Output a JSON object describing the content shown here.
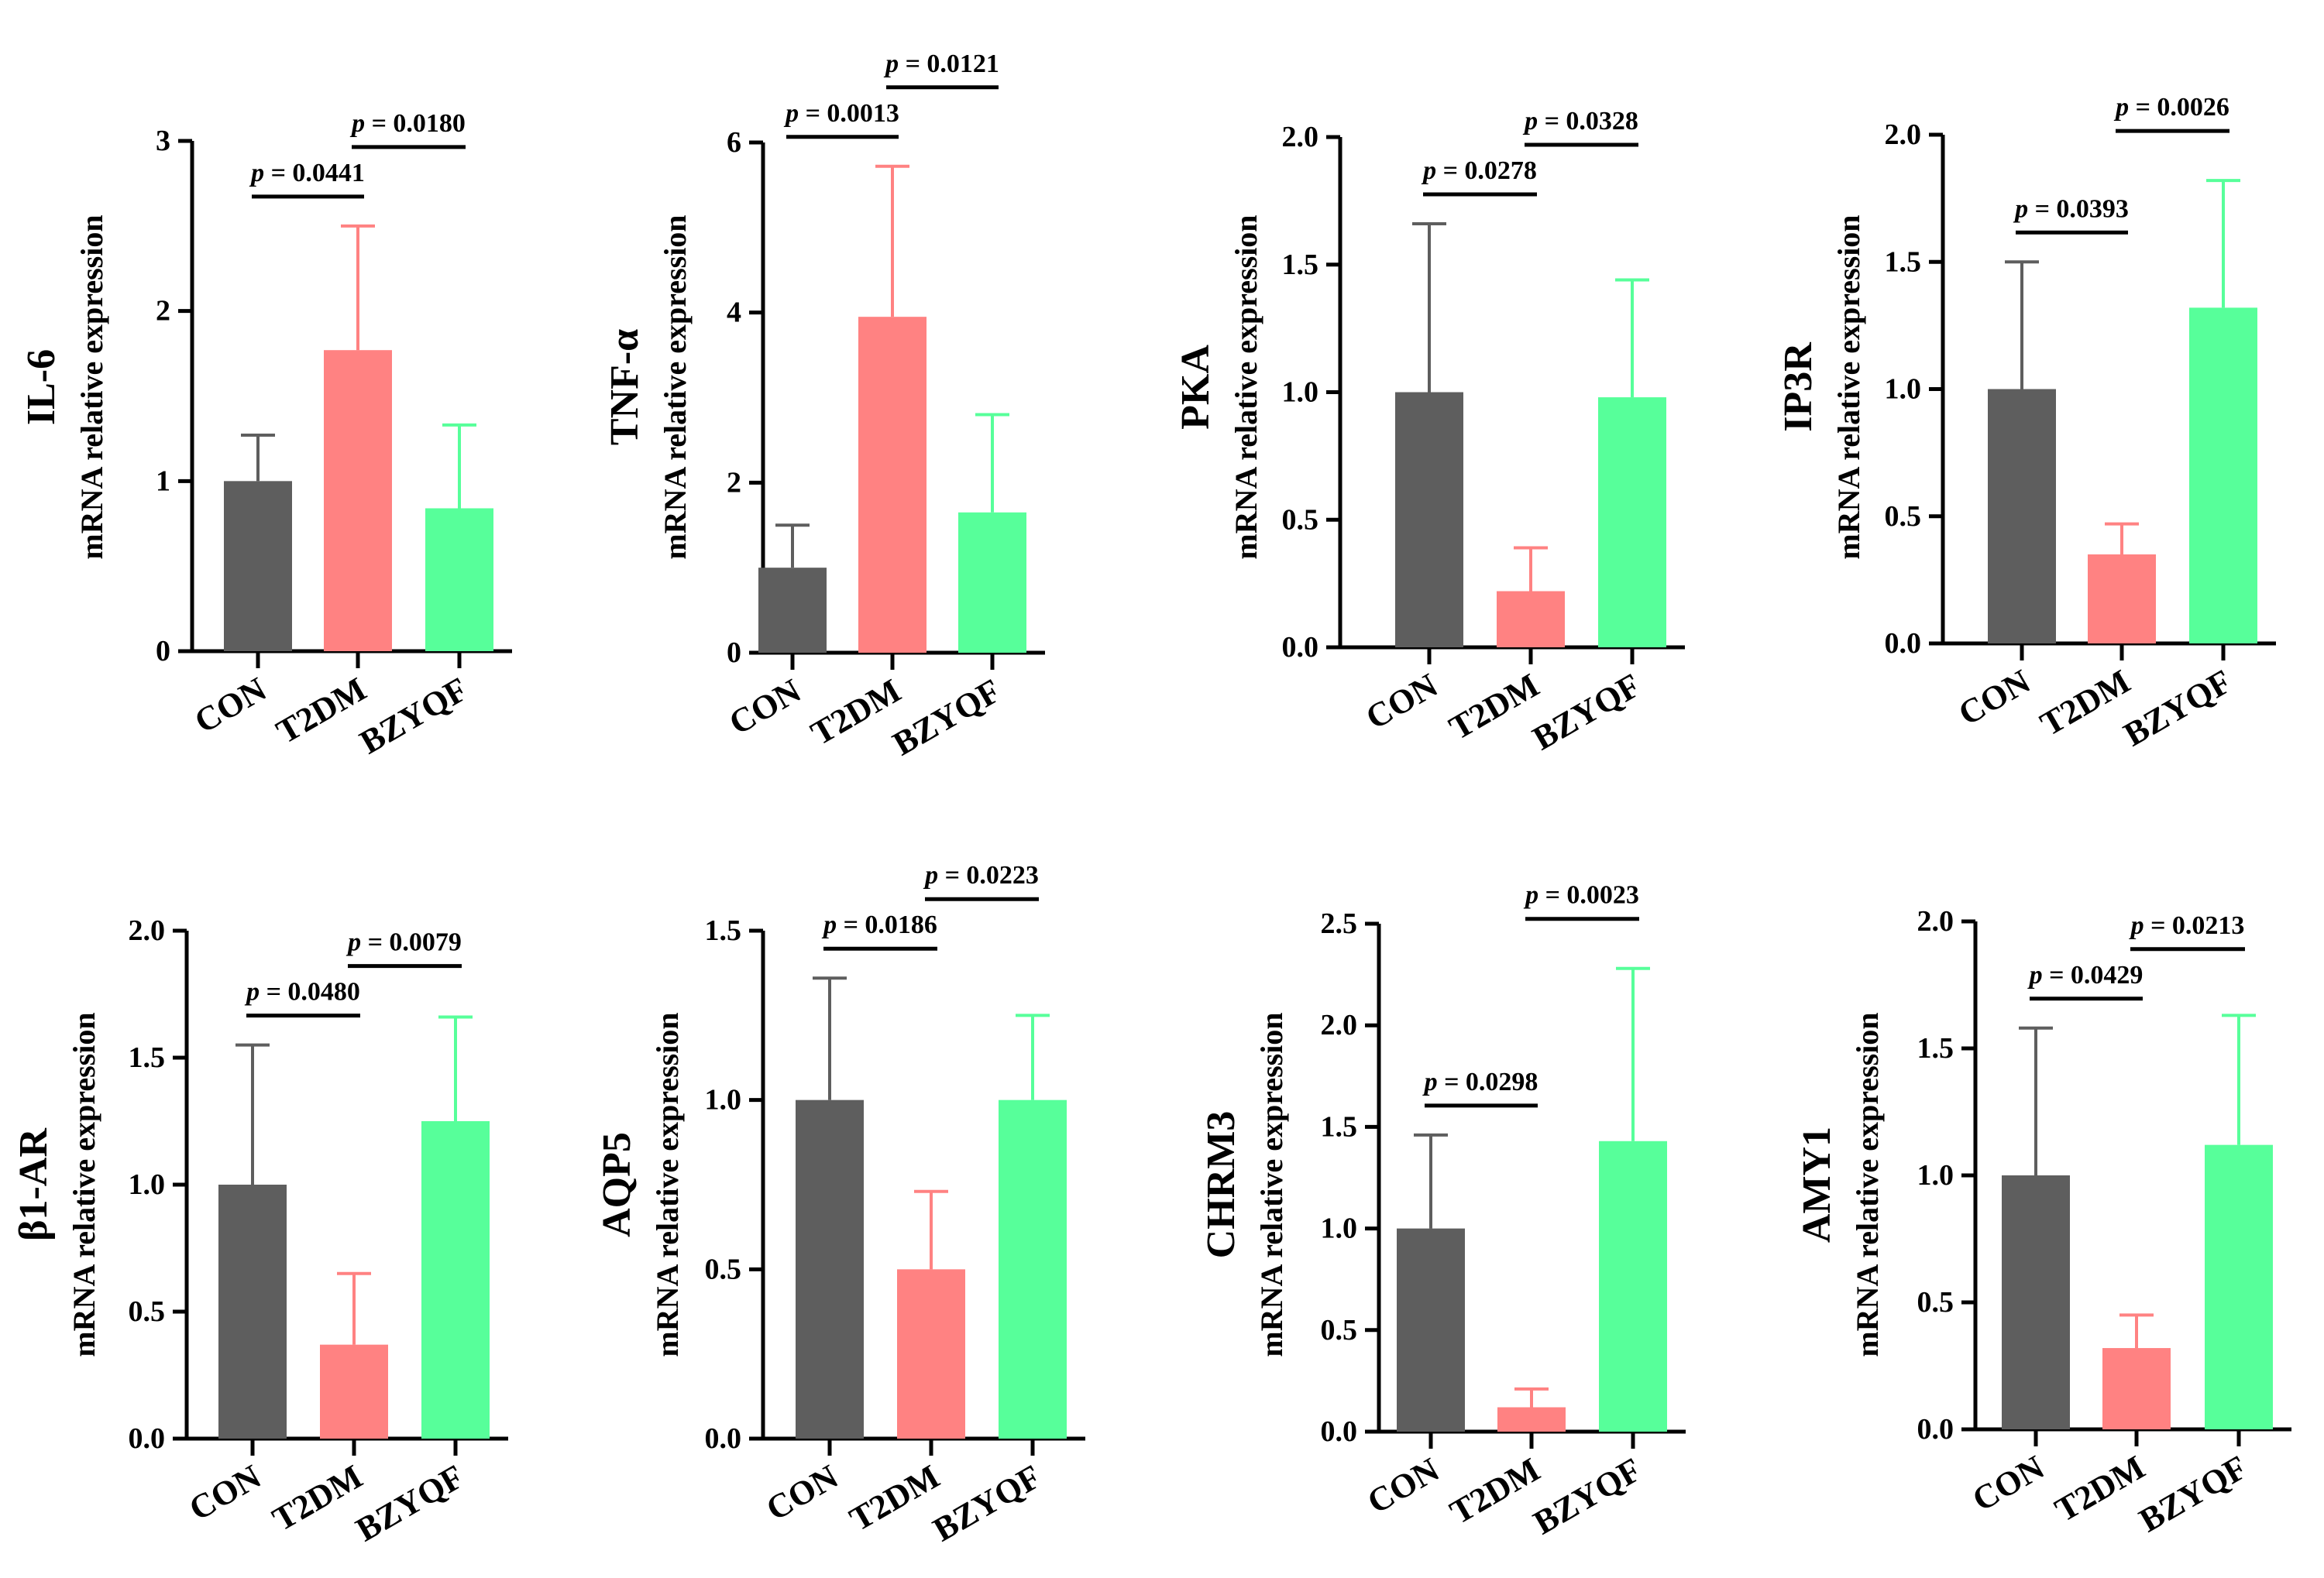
{
  "chart_data": [
    {
      "type": "bar",
      "gene": "IL-6",
      "ylabel": "mRNA relative expression",
      "categories": [
        "CON",
        "T2DM",
        "BZYQF"
      ],
      "values": [
        1.0,
        1.77,
        0.84
      ],
      "errors": [
        0.27,
        0.73,
        0.49
      ],
      "ylim": [
        0,
        3
      ],
      "yticks": [
        "0",
        "1",
        "2",
        "3"
      ],
      "comparisons": [
        {
          "from": "CON",
          "to": "T2DM",
          "label": "p = 0.0441"
        },
        {
          "from": "T2DM",
          "to": "BZYQF",
          "label": "p = 0.0180"
        }
      ]
    },
    {
      "type": "bar",
      "gene": "TNF-α",
      "ylabel": "mRNA relative expression",
      "categories": [
        "CON",
        "T2DM",
        "BZYQF"
      ],
      "values": [
        1.0,
        3.95,
        1.65
      ],
      "errors": [
        0.5,
        1.77,
        1.15
      ],
      "ylim": [
        0,
        6
      ],
      "yticks": [
        "0",
        "2",
        "4",
        "6"
      ],
      "comparisons": [
        {
          "from": "CON",
          "to": "T2DM",
          "label": "p = 0.0013"
        },
        {
          "from": "T2DM",
          "to": "BZYQF",
          "label": "p = 0.0121"
        }
      ]
    },
    {
      "type": "bar",
      "gene": "PKA",
      "ylabel": "mRNA relative expression",
      "categories": [
        "CON",
        "T2DM",
        "BZYQF"
      ],
      "values": [
        1.0,
        0.22,
        0.98
      ],
      "errors": [
        0.66,
        0.17,
        0.46
      ],
      "ylim": [
        0,
        2
      ],
      "yticks": [
        "0.0",
        "0.5",
        "1.0",
        "1.5",
        "2.0"
      ],
      "comparisons": [
        {
          "from": "CON",
          "to": "T2DM",
          "label": "p = 0.0278"
        },
        {
          "from": "T2DM",
          "to": "BZYQF",
          "label": "p = 0.0328"
        }
      ]
    },
    {
      "type": "bar",
      "gene": "IP3R",
      "ylabel": "mRNA relative expression",
      "categories": [
        "CON",
        "T2DM",
        "BZYQF"
      ],
      "values": [
        1.0,
        0.35,
        1.32
      ],
      "errors": [
        0.5,
        0.12,
        0.5
      ],
      "ylim": [
        0,
        2
      ],
      "yticks": [
        "0.0",
        "0.5",
        "1.0",
        "1.5",
        "2.0"
      ],
      "comparisons": [
        {
          "from": "CON",
          "to": "T2DM",
          "label": "p = 0.0393"
        },
        {
          "from": "T2DM",
          "to": "BZYQF",
          "label": "p = 0.0026"
        }
      ]
    },
    {
      "type": "bar",
      "gene": "β1-AR",
      "ylabel": "mRNA relative expression",
      "categories": [
        "CON",
        "T2DM",
        "BZYQF"
      ],
      "values": [
        1.0,
        0.37,
        1.25
      ],
      "errors": [
        0.55,
        0.28,
        0.41
      ],
      "ylim": [
        0,
        2
      ],
      "yticks": [
        "0.0",
        "0.5",
        "1.0",
        "1.5",
        "2.0"
      ],
      "comparisons": [
        {
          "from": "CON",
          "to": "T2DM",
          "label": "p = 0.0480"
        },
        {
          "from": "T2DM",
          "to": "BZYQF",
          "label": "p = 0.0079"
        }
      ]
    },
    {
      "type": "bar",
      "gene": "AQP5",
      "ylabel": "mRNA relative expression",
      "categories": [
        "CON",
        "T2DM",
        "BZYQF"
      ],
      "values": [
        1.0,
        0.5,
        1.0
      ],
      "errors": [
        0.36,
        0.23,
        0.25
      ],
      "ylim": [
        0,
        1.5
      ],
      "yticks": [
        "0.0",
        "0.5",
        "1.0",
        "1.5"
      ],
      "comparisons": [
        {
          "from": "CON",
          "to": "T2DM",
          "label": "p = 0.0186"
        },
        {
          "from": "T2DM",
          "to": "BZYQF",
          "label": "p = 0.0223"
        }
      ]
    },
    {
      "type": "bar",
      "gene": "CHRM3",
      "ylabel": "mRNA relative expression",
      "categories": [
        "CON",
        "T2DM",
        "BZYQF"
      ],
      "values": [
        1.0,
        0.12,
        1.43
      ],
      "errors": [
        0.46,
        0.09,
        0.85
      ],
      "ylim": [
        0,
        2.5
      ],
      "yticks": [
        "0.0",
        "0.5",
        "1.0",
        "1.5",
        "2.0",
        "2.5"
      ],
      "comparisons": [
        {
          "from": "CON",
          "to": "T2DM",
          "label": "p = 0.0298"
        },
        {
          "from": "T2DM",
          "to": "BZYQF",
          "label": "p = 0.0023"
        }
      ]
    },
    {
      "type": "bar",
      "gene": "AMY1",
      "ylabel": "mRNA relative expression",
      "categories": [
        "CON",
        "T2DM",
        "BZYQF"
      ],
      "values": [
        1.0,
        0.32,
        1.12
      ],
      "errors": [
        0.58,
        0.13,
        0.51
      ],
      "ylim": [
        0,
        2
      ],
      "yticks": [
        "0.0",
        "0.5",
        "1.0",
        "1.5",
        "2.0"
      ],
      "comparisons": [
        {
          "from": "CON",
          "to": "T2DM",
          "label": "p = 0.0429"
        },
        {
          "from": "T2DM",
          "to": "BZYQF",
          "label": "p = 0.0213"
        }
      ]
    }
  ],
  "colors": {
    "CON": "#5e5e5e",
    "T2DM": "#ff8282",
    "BZYQF": "#57ff9a",
    "axis": "#000000"
  }
}
